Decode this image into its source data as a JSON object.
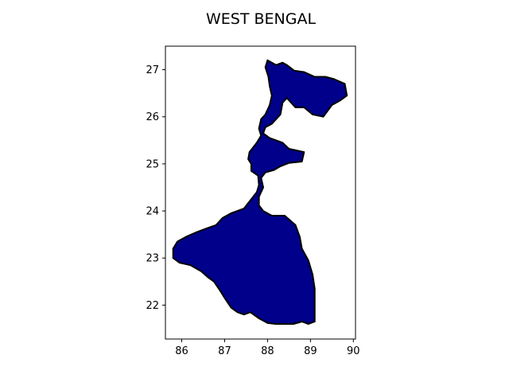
{
  "title": "WEST BENGAL",
  "colors": {
    "land_fill": "#00008b",
    "outline": "#000000",
    "frame": "#000000",
    "background": "#ffffff"
  },
  "chart_data": {
    "type": "map",
    "title": "WEST BENGAL",
    "xlabel": "",
    "ylabel": "",
    "xlim": [
      85.62,
      90.05
    ],
    "ylim": [
      21.28,
      27.5
    ],
    "x_ticks": [
      86,
      87,
      88,
      89,
      90
    ],
    "y_ticks": [
      22,
      23,
      24,
      25,
      26,
      27
    ],
    "x_tick_labels": [
      "86",
      "87",
      "88",
      "89",
      "90"
    ],
    "y_tick_labels": [
      "22",
      "23",
      "24",
      "25",
      "26",
      "27"
    ],
    "grid": false,
    "legend": "none",
    "regions": [
      {
        "name": "West Bengal",
        "boundary": [
          [
            88.0,
            27.2
          ],
          [
            88.1,
            27.15
          ],
          [
            88.2,
            27.1
          ],
          [
            88.35,
            27.15
          ],
          [
            88.45,
            27.1
          ],
          [
            88.62,
            26.98
          ],
          [
            88.85,
            26.95
          ],
          [
            89.1,
            26.85
          ],
          [
            89.35,
            26.85
          ],
          [
            89.55,
            26.8
          ],
          [
            89.8,
            26.7
          ],
          [
            89.85,
            26.45
          ],
          [
            89.7,
            26.35
          ],
          [
            89.5,
            26.25
          ],
          [
            89.3,
            26.0
          ],
          [
            89.05,
            26.05
          ],
          [
            88.85,
            26.2
          ],
          [
            88.65,
            26.2
          ],
          [
            88.45,
            26.4
          ],
          [
            88.35,
            26.3
          ],
          [
            88.3,
            26.05
          ],
          [
            88.1,
            25.85
          ],
          [
            87.95,
            25.78
          ],
          [
            87.9,
            25.65
          ],
          [
            88.05,
            25.55
          ],
          [
            88.35,
            25.45
          ],
          [
            88.5,
            25.32
          ],
          [
            88.85,
            25.25
          ],
          [
            88.8,
            25.05
          ],
          [
            88.5,
            25.02
          ],
          [
            88.3,
            24.95
          ],
          [
            88.15,
            24.87
          ],
          [
            87.95,
            24.82
          ],
          [
            87.85,
            24.7
          ],
          [
            87.9,
            24.5
          ],
          [
            87.8,
            24.3
          ],
          [
            87.8,
            24.12
          ],
          [
            87.9,
            24.0
          ],
          [
            88.1,
            23.9
          ],
          [
            88.4,
            23.9
          ],
          [
            88.65,
            23.7
          ],
          [
            88.75,
            23.45
          ],
          [
            88.8,
            23.2
          ],
          [
            88.95,
            22.95
          ],
          [
            89.05,
            22.65
          ],
          [
            89.1,
            22.35
          ],
          [
            89.1,
            22.0
          ],
          [
            89.1,
            21.65
          ],
          [
            88.95,
            21.6
          ],
          [
            88.8,
            21.65
          ],
          [
            88.6,
            21.6
          ],
          [
            88.4,
            21.6
          ],
          [
            88.2,
            21.6
          ],
          [
            88.0,
            21.62
          ],
          [
            87.8,
            21.72
          ],
          [
            87.6,
            21.85
          ],
          [
            87.45,
            21.8
          ],
          [
            87.3,
            21.85
          ],
          [
            87.15,
            21.95
          ],
          [
            87.0,
            22.15
          ],
          [
            86.9,
            22.3
          ],
          [
            86.75,
            22.5
          ],
          [
            86.6,
            22.6
          ],
          [
            86.45,
            22.72
          ],
          [
            86.2,
            22.85
          ],
          [
            85.95,
            22.9
          ],
          [
            85.8,
            23.0
          ],
          [
            85.8,
            23.2
          ],
          [
            85.9,
            23.35
          ],
          [
            86.1,
            23.45
          ],
          [
            86.35,
            23.55
          ],
          [
            86.55,
            23.62
          ],
          [
            86.8,
            23.7
          ],
          [
            86.95,
            23.85
          ],
          [
            87.15,
            23.95
          ],
          [
            87.45,
            24.05
          ],
          [
            87.75,
            24.4
          ],
          [
            87.8,
            24.55
          ],
          [
            87.78,
            24.75
          ],
          [
            87.62,
            24.85
          ],
          [
            87.62,
            25.0
          ],
          [
            87.55,
            25.1
          ],
          [
            87.58,
            25.25
          ],
          [
            87.75,
            25.45
          ],
          [
            87.85,
            25.6
          ],
          [
            87.8,
            25.75
          ],
          [
            87.85,
            25.95
          ],
          [
            87.95,
            26.05
          ],
          [
            88.05,
            26.25
          ],
          [
            88.1,
            26.45
          ],
          [
            88.05,
            26.65
          ],
          [
            88.02,
            26.85
          ],
          [
            87.95,
            27.05
          ]
        ]
      }
    ]
  }
}
